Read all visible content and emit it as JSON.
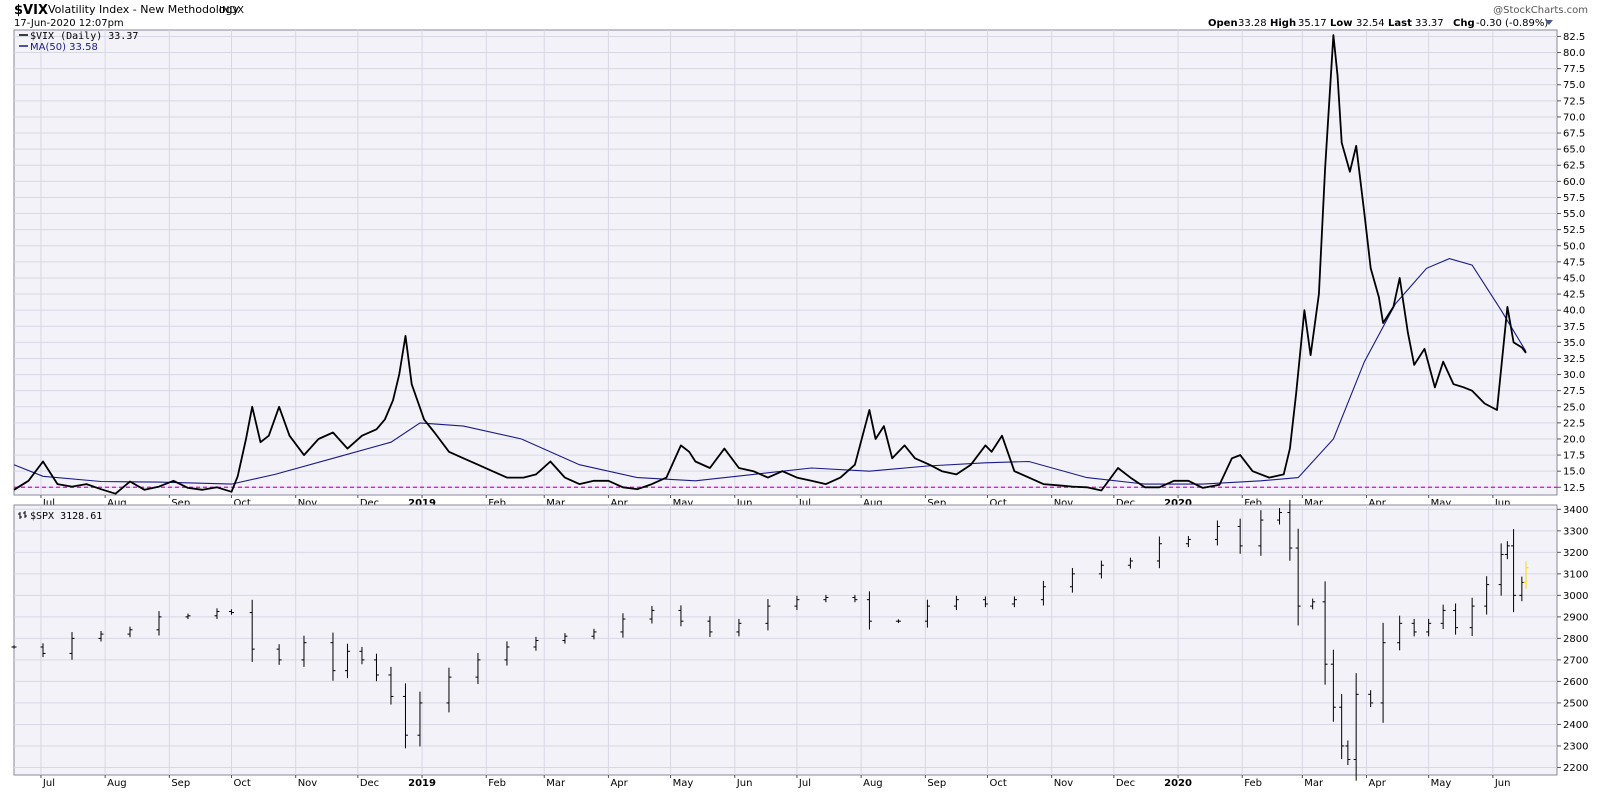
{
  "header": {
    "symbol": "$VIX",
    "description": "Volatility Index - New Methodology",
    "exchange": "INDX",
    "datetime": "17-Jun-2020 12:07pm",
    "credit": "@StockCharts.com",
    "stats": {
      "open_label": "Open",
      "open": "33.28",
      "high_label": "High",
      "high": "35.17",
      "low_label": "Low",
      "low": "32.54",
      "last_label": "Last",
      "last": "33.37",
      "chg_label": "Chg",
      "chg": "-0.30 (-0.89%)"
    }
  },
  "legend": {
    "vix": "$VIX (Daily) 33.37",
    "ma": "MA(50) 33.58",
    "spx": "$SPX 3128.61"
  },
  "colors": {
    "vix_line": "#000000",
    "ma_line": "#1a1a8c",
    "reference_line": "#e000e0",
    "spx_bar": "#000000",
    "last_bar": "#ffd800",
    "panel_bg": "#f2f2f8",
    "grid": "#d8d8e4"
  },
  "chart_data": [
    {
      "type": "line",
      "panel": "upper",
      "x_tick_labels": [
        "Jul",
        "Aug",
        "Sep",
        "Oct",
        "Nov",
        "Dec",
        "2019",
        "Feb",
        "Mar",
        "Apr",
        "May",
        "Jun",
        "Jul",
        "Aug",
        "Sep",
        "Oct",
        "Nov",
        "Dec",
        "2020",
        "Feb",
        "Mar",
        "Apr",
        "May",
        "Jun"
      ],
      "y_tick_labels": [
        "12.5",
        "15.0",
        "17.5",
        "20.0",
        "22.5",
        "25.0",
        "27.5",
        "30.0",
        "32.5",
        "35.0",
        "37.5",
        "40.0",
        "42.5",
        "45.0",
        "47.5",
        "50.0",
        "52.5",
        "55.0",
        "57.5",
        "60.0",
        "62.5",
        "65.0",
        "67.5",
        "70.0",
        "72.5",
        "75.0",
        "77.5",
        "80.0",
        "82.5"
      ],
      "ylim": [
        11.3,
        83.5
      ],
      "reference_line": 12.5,
      "series": [
        {
          "name": "$VIX (Daily)",
          "x": [
            "2018-06-18",
            "2018-06-25",
            "2018-07-02",
            "2018-07-09",
            "2018-07-16",
            "2018-07-23",
            "2018-07-30",
            "2018-08-06",
            "2018-08-13",
            "2018-08-20",
            "2018-08-27",
            "2018-09-03",
            "2018-09-10",
            "2018-09-17",
            "2018-09-24",
            "2018-10-01",
            "2018-10-04",
            "2018-10-08",
            "2018-10-11",
            "2018-10-15",
            "2018-10-19",
            "2018-10-24",
            "2018-10-29",
            "2018-11-05",
            "2018-11-12",
            "2018-11-19",
            "2018-11-26",
            "2018-12-03",
            "2018-12-10",
            "2018-12-14",
            "2018-12-18",
            "2018-12-21",
            "2018-12-24",
            "2018-12-27",
            "2019-01-02",
            "2019-01-07",
            "2019-01-14",
            "2019-01-21",
            "2019-01-28",
            "2019-02-04",
            "2019-02-11",
            "2019-02-19",
            "2019-02-25",
            "2019-03-04",
            "2019-03-11",
            "2019-03-18",
            "2019-03-25",
            "2019-04-01",
            "2019-04-08",
            "2019-04-15",
            "2019-04-22",
            "2019-04-29",
            "2019-05-06",
            "2019-05-10",
            "2019-05-13",
            "2019-05-20",
            "2019-05-27",
            "2019-06-03",
            "2019-06-10",
            "2019-06-17",
            "2019-06-24",
            "2019-07-01",
            "2019-07-08",
            "2019-07-15",
            "2019-07-22",
            "2019-07-29",
            "2019-08-05",
            "2019-08-08",
            "2019-08-12",
            "2019-08-16",
            "2019-08-22",
            "2019-08-27",
            "2019-09-03",
            "2019-09-09",
            "2019-09-16",
            "2019-09-23",
            "2019-09-30",
            "2019-10-03",
            "2019-10-08",
            "2019-10-14",
            "2019-10-21",
            "2019-10-28",
            "2019-11-04",
            "2019-11-11",
            "2019-11-18",
            "2019-11-25",
            "2019-12-03",
            "2019-12-09",
            "2019-12-16",
            "2019-12-23",
            "2019-12-30",
            "2020-01-06",
            "2020-01-13",
            "2020-01-21",
            "2020-01-27",
            "2020-01-31",
            "2020-02-06",
            "2020-02-14",
            "2020-02-21",
            "2020-02-24",
            "2020-02-27",
            "2020-03-02",
            "2020-03-05",
            "2020-03-09",
            "2020-03-12",
            "2020-03-16",
            "2020-03-18",
            "2020-03-20",
            "2020-03-24",
            "2020-03-27",
            "2020-03-31",
            "2020-04-03",
            "2020-04-07",
            "2020-04-09",
            "2020-04-14",
            "2020-04-17",
            "2020-04-21",
            "2020-04-24",
            "2020-04-29",
            "2020-05-04",
            "2020-05-08",
            "2020-05-13",
            "2020-05-18",
            "2020-05-22",
            "2020-05-28",
            "2020-06-03",
            "2020-06-08",
            "2020-06-11",
            "2020-06-15",
            "2020-06-17"
          ],
          "values": [
            12.1,
            13.5,
            16.5,
            13.0,
            12.6,
            13.0,
            12.2,
            11.5,
            13.4,
            12.1,
            12.6,
            13.5,
            12.4,
            12.1,
            12.5,
            11.8,
            14.2,
            20.0,
            25.0,
            19.5,
            20.5,
            25.0,
            20.5,
            17.5,
            20.0,
            21.0,
            18.5,
            20.5,
            21.5,
            23.0,
            26.0,
            30.0,
            36.0,
            28.5,
            23.0,
            21.0,
            18.0,
            17.0,
            16.0,
            15.0,
            14.0,
            14.0,
            14.5,
            16.5,
            14.0,
            13.0,
            13.5,
            13.5,
            12.5,
            12.2,
            13.0,
            14.0,
            19.0,
            18.0,
            16.5,
            15.5,
            18.5,
            15.5,
            15.0,
            14.0,
            15.0,
            14.0,
            13.5,
            13.0,
            14.0,
            16.0,
            24.5,
            20.0,
            22.0,
            17.0,
            19.0,
            17.0,
            16.0,
            15.0,
            14.5,
            16.0,
            19.0,
            18.0,
            20.5,
            15.0,
            14.0,
            13.0,
            12.8,
            12.6,
            12.5,
            12.0,
            15.5,
            14.0,
            12.5,
            12.5,
            13.5,
            13.5,
            12.4,
            12.9,
            17.0,
            17.5,
            15.0,
            14.0,
            14.5,
            18.5,
            27.0,
            40.0,
            33.0,
            42.5,
            62.0,
            82.7,
            76.5,
            66.0,
            61.5,
            65.5,
            55.0,
            46.5,
            42.0,
            38.0,
            40.5,
            45.0,
            36.5,
            31.5,
            34.0,
            28.0,
            32.0,
            28.5,
            28.0,
            27.5,
            25.5,
            24.5,
            40.5,
            35.0,
            34.2,
            33.37
          ]
        },
        {
          "name": "MA(50)",
          "x": [
            "2018-06-18",
            "2018-07-02",
            "2018-07-30",
            "2018-08-27",
            "2018-10-01",
            "2018-10-22",
            "2018-11-19",
            "2018-12-17",
            "2018-12-31",
            "2019-01-21",
            "2019-02-18",
            "2019-03-18",
            "2019-04-15",
            "2019-05-13",
            "2019-06-10",
            "2019-07-08",
            "2019-08-05",
            "2019-09-02",
            "2019-09-30",
            "2019-10-21",
            "2019-11-18",
            "2019-12-16",
            "2020-01-13",
            "2020-02-10",
            "2020-02-28",
            "2020-03-16",
            "2020-03-31",
            "2020-04-15",
            "2020-04-30",
            "2020-05-11",
            "2020-05-22",
            "2020-06-05",
            "2020-06-17"
          ],
          "values": [
            16.0,
            14.2,
            13.4,
            13.3,
            13.0,
            14.5,
            17.0,
            19.5,
            22.5,
            22.0,
            20.0,
            16.0,
            14.0,
            13.5,
            14.5,
            15.5,
            15.0,
            15.8,
            16.3,
            16.5,
            14.0,
            13.0,
            13.0,
            13.5,
            14.0,
            20.0,
            32.0,
            41.0,
            46.5,
            48.0,
            47.0,
            40.0,
            33.58
          ]
        }
      ]
    },
    {
      "type": "bar",
      "panel": "lower",
      "style": "ohlc",
      "x_tick_labels": [
        "Jul",
        "Aug",
        "Sep",
        "Oct",
        "Nov",
        "Dec",
        "2019",
        "Feb",
        "Mar",
        "Apr",
        "May",
        "Jun",
        "Jul",
        "Aug",
        "Sep",
        "Oct",
        "Nov",
        "Dec",
        "2020",
        "Feb",
        "Mar",
        "Apr",
        "May",
        "Jun"
      ],
      "y_tick_labels": [
        "2200",
        "2300",
        "2400",
        "2500",
        "2600",
        "2700",
        "2800",
        "2900",
        "3000",
        "3100",
        "3200",
        "3300",
        "3400"
      ],
      "ylim": [
        2165,
        3420
      ],
      "series": [
        {
          "name": "$SPX",
          "x": [
            "2018-06-18",
            "2018-07-02",
            "2018-07-16",
            "2018-07-30",
            "2018-08-13",
            "2018-08-27",
            "2018-09-10",
            "2018-09-24",
            "2018-10-01",
            "2018-10-11",
            "2018-10-24",
            "2018-11-05",
            "2018-11-19",
            "2018-11-26",
            "2018-12-03",
            "2018-12-10",
            "2018-12-17",
            "2018-12-24",
            "2018-12-31",
            "2019-01-14",
            "2019-01-28",
            "2019-02-11",
            "2019-02-25",
            "2019-03-11",
            "2019-03-25",
            "2019-04-08",
            "2019-04-22",
            "2019-05-06",
            "2019-05-20",
            "2019-06-03",
            "2019-06-17",
            "2019-07-01",
            "2019-07-15",
            "2019-07-29",
            "2019-08-05",
            "2019-08-19",
            "2019-09-02",
            "2019-09-16",
            "2019-09-30",
            "2019-10-14",
            "2019-10-28",
            "2019-11-11",
            "2019-11-25",
            "2019-12-09",
            "2019-12-23",
            "2020-01-06",
            "2020-01-20",
            "2020-01-31",
            "2020-02-10",
            "2020-02-19",
            "2020-02-24",
            "2020-02-28",
            "2020-03-06",
            "2020-03-12",
            "2020-03-16",
            "2020-03-20",
            "2020-03-23",
            "2020-03-27",
            "2020-04-03",
            "2020-04-09",
            "2020-04-17",
            "2020-04-24",
            "2020-05-01",
            "2020-05-08",
            "2020-05-14",
            "2020-05-22",
            "2020-05-29",
            "2020-06-05",
            "2020-06-08",
            "2020-06-11",
            "2020-06-15",
            "2020-06-17"
          ],
          "values": [
            2760,
            2730,
            2800,
            2820,
            2840,
            2900,
            2905,
            2925,
            2920,
            2750,
            2700,
            2780,
            2650,
            2740,
            2700,
            2630,
            2530,
            2350,
            2500,
            2620,
            2700,
            2760,
            2790,
            2810,
            2830,
            2890,
            2930,
            2880,
            2830,
            2870,
            2950,
            2980,
            2990,
            2980,
            2880,
            2880,
            2950,
            2980,
            2960,
            2980,
            3040,
            3100,
            3140,
            3160,
            3240,
            3260,
            3320,
            3230,
            3350,
            3385,
            3220,
            2950,
            2970,
            2680,
            2480,
            2300,
            2237,
            2540,
            2500,
            2780,
            2870,
            2830,
            2870,
            2930,
            2850,
            2950,
            3050,
            3190,
            3230,
            3000,
            3060,
            3128.61
          ]
        }
      ]
    }
  ]
}
